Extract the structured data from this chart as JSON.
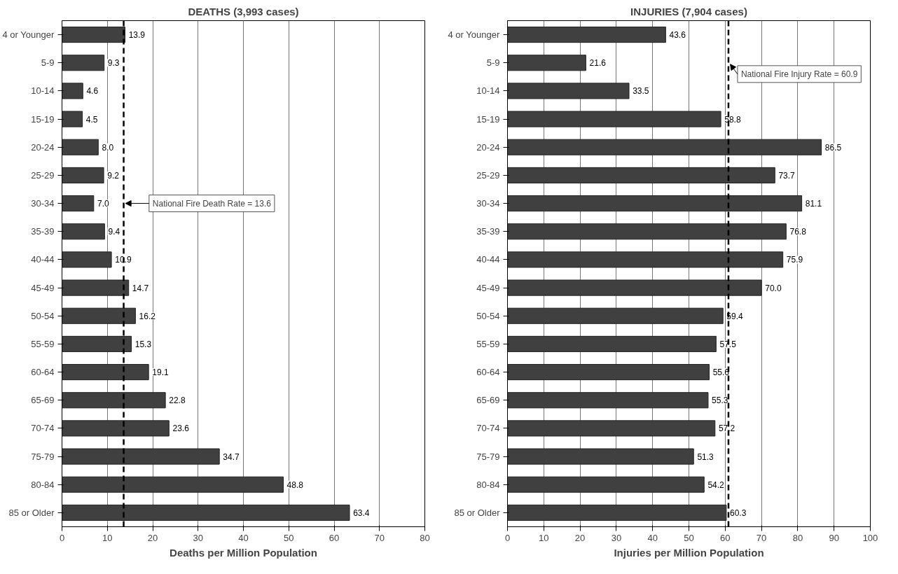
{
  "chart_data": [
    {
      "type": "bar",
      "orientation": "horizontal",
      "title": "DEATHS (3,993 cases)",
      "xlabel": "Deaths per Million Population",
      "categories": [
        "4 or Younger",
        "5-9",
        "10-14",
        "15-19",
        "20-24",
        "25-29",
        "30-34",
        "35-39",
        "40-44",
        "45-49",
        "50-54",
        "55-59",
        "60-64",
        "65-69",
        "70-74",
        "75-79",
        "80-84",
        "85 or Older"
      ],
      "values": [
        13.9,
        9.3,
        4.6,
        4.5,
        8.0,
        9.2,
        7.0,
        9.4,
        10.9,
        14.7,
        16.2,
        15.3,
        19.1,
        22.8,
        23.6,
        34.7,
        48.8,
        63.4
      ],
      "value_labels": [
        "13.9",
        "9.3",
        "4.6",
        "4.5",
        "8.0",
        "9.2",
        "7.0",
        "9.4",
        "10.9",
        "14.7",
        "16.2",
        "15.3",
        "19.1",
        "22.8",
        "23.6",
        "34.7",
        "48.8",
        "63.4"
      ],
      "color": "#404040",
      "xlim": [
        0,
        80
      ],
      "xticks": [
        0,
        10,
        20,
        30,
        40,
        50,
        60,
        70,
        80
      ],
      "grid": "x",
      "ref_lines": [
        {
          "axis": "x",
          "value": 13.6,
          "label": "National Fire Death Rate = 13.6",
          "color": "#000000",
          "line_style": "dashed"
        }
      ]
    },
    {
      "type": "bar",
      "orientation": "horizontal",
      "title": "INJURIES (7,904 cases)",
      "xlabel": "Injuries per Million Population",
      "categories": [
        "4 or Younger",
        "5-9",
        "10-14",
        "15-19",
        "20-24",
        "25-29",
        "30-34",
        "35-39",
        "40-44",
        "45-49",
        "50-54",
        "55-59",
        "60-64",
        "65-69",
        "70-74",
        "75-79",
        "80-84",
        "85 or Older"
      ],
      "values": [
        43.6,
        21.6,
        33.5,
        58.8,
        86.5,
        73.7,
        81.1,
        76.8,
        75.9,
        70.0,
        59.4,
        57.5,
        55.6,
        55.3,
        57.2,
        51.3,
        54.2,
        60.3
      ],
      "value_labels": [
        "43.6",
        "21.6",
        "33.5",
        "58.8",
        "86.5",
        "73.7",
        "81.1",
        "76.8",
        "75.9",
        "70.0",
        "59.4",
        "57.5",
        "55.6",
        "55.3",
        "57.2",
        "51.3",
        "54.2",
        "60.3"
      ],
      "color": "#404040",
      "xlim": [
        0,
        100
      ],
      "xticks": [
        0,
        10,
        20,
        30,
        40,
        50,
        60,
        70,
        80,
        90,
        100
      ],
      "grid": "x",
      "ref_lines": [
        {
          "axis": "x",
          "value": 60.9,
          "label": "National Fire Injury Rate = 60.9",
          "color": "#000000",
          "line_style": "dashed"
        }
      ]
    }
  ]
}
